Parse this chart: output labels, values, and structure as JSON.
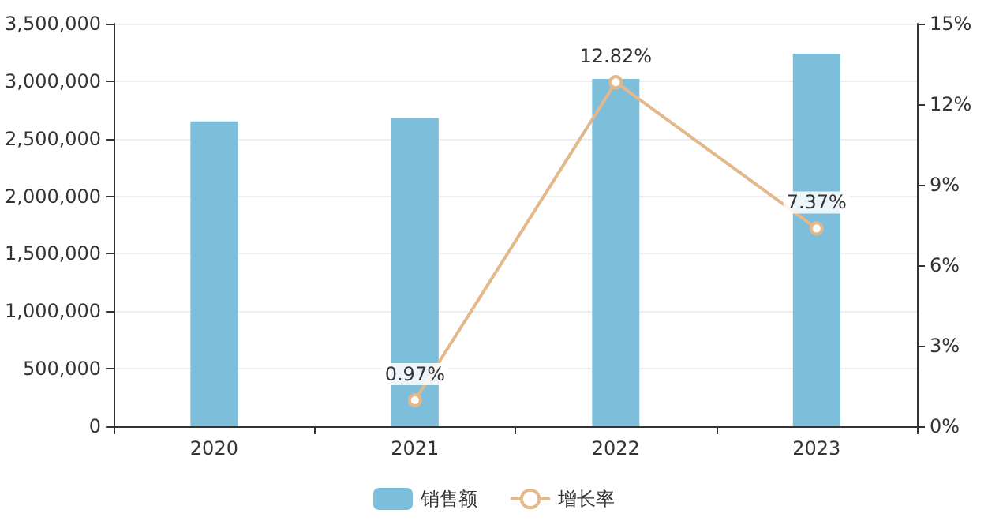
{
  "chart_data": {
    "type": "bar",
    "categories": [
      "2020",
      "2021",
      "2022",
      "2023"
    ],
    "series": [
      {
        "name": "销售额",
        "color": "#7dbedb",
        "values": [
          2650000,
          2680000,
          3020000,
          3240000
        ]
      },
      {
        "name": "增长率",
        "type": "line",
        "axis": "y2",
        "color": "#e3b88a",
        "marker": "circle",
        "values": [
          null,
          0.97,
          12.82,
          7.37
        ],
        "value_labels": [
          null,
          "0.97%",
          "12.82%",
          "7.37%"
        ]
      }
    ],
    "ylim": [
      0,
      3500000
    ],
    "yticks": [
      {
        "value": 0,
        "label": "0"
      },
      {
        "value": 500000,
        "label": "500,000"
      },
      {
        "value": 1000000,
        "label": "1,000,000"
      },
      {
        "value": 1500000,
        "label": "1,500,000"
      },
      {
        "value": 2000000,
        "label": "2,000,000"
      },
      {
        "value": 2500000,
        "label": "2,500,000"
      },
      {
        "value": 3000000,
        "label": "3,000,000"
      },
      {
        "value": 3500000,
        "label": "3,500,000"
      }
    ],
    "y2lim": [
      0,
      15
    ],
    "y2ticks": [
      {
        "value": 0,
        "label": "0%"
      },
      {
        "value": 3,
        "label": "3%"
      },
      {
        "value": 6,
        "label": "6%"
      },
      {
        "value": 9,
        "label": "9%"
      },
      {
        "value": 12,
        "label": "12%"
      },
      {
        "value": 15,
        "label": "15%"
      }
    ],
    "grid": "y",
    "legend": "bottom"
  }
}
